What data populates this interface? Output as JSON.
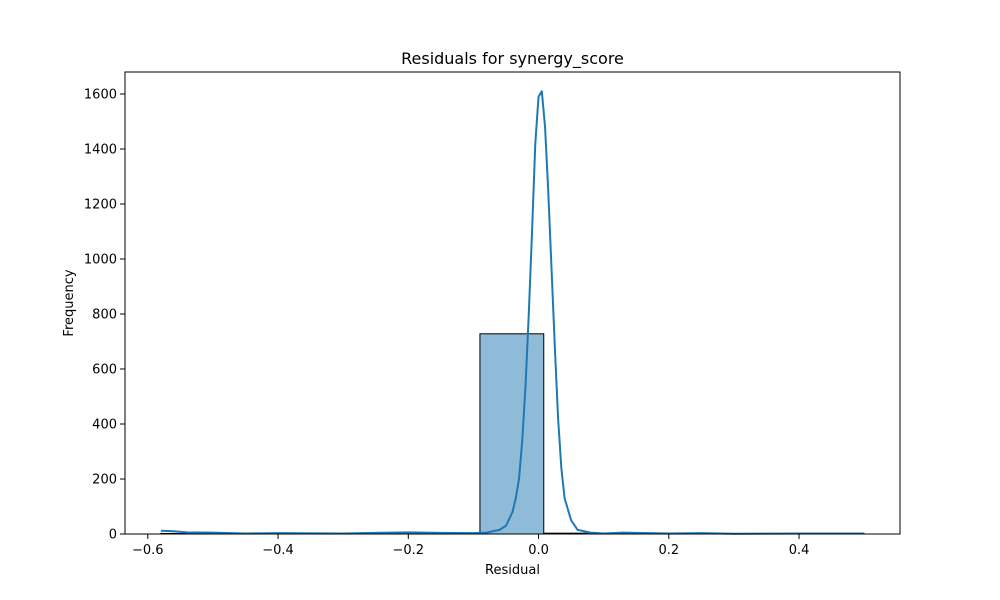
{
  "chart_data": {
    "type": "bar",
    "title": "Residuals for synergy_score",
    "xlabel": "Residual",
    "ylabel": "Frequency",
    "xlim": [
      -0.635,
      0.555
    ],
    "ylim": [
      0,
      1680
    ],
    "xticks": [
      -0.6,
      -0.4,
      -0.2,
      0.0,
      0.2,
      0.4
    ],
    "xtick_labels": [
      "−0.6",
      "−0.4",
      "−0.2",
      "0.0",
      "0.2",
      "0.4"
    ],
    "yticks": [
      0,
      200,
      400,
      600,
      800,
      1000,
      1200,
      1400,
      1600
    ],
    "ytick_labels": [
      "0",
      "200",
      "400",
      "600",
      "800",
      "1000",
      "1200",
      "1400",
      "1600"
    ],
    "grid": false,
    "bar_color": "#1f77b4",
    "bar_alpha": 0.5,
    "bar_edge_color": "#000000",
    "kde_color": "#1f77b4",
    "histogram": {
      "bin_edges": [
        -0.58,
        -0.482,
        -0.384,
        -0.286,
        -0.188,
        -0.09,
        0.008,
        0.106,
        0.204,
        0.302,
        0.4,
        0.5
      ],
      "counts": [
        2,
        0,
        0,
        0,
        0,
        728,
        3,
        0,
        0,
        0,
        1
      ]
    },
    "kde": {
      "x": [
        -0.58,
        -0.56,
        -0.54,
        -0.5,
        -0.45,
        -0.4,
        -0.3,
        -0.2,
        -0.15,
        -0.1,
        -0.08,
        -0.06,
        -0.05,
        -0.04,
        -0.035,
        -0.03,
        -0.025,
        -0.02,
        -0.015,
        -0.01,
        -0.005,
        0.0,
        0.005,
        0.01,
        0.015,
        0.02,
        0.025,
        0.03,
        0.035,
        0.04,
        0.05,
        0.06,
        0.08,
        0.1,
        0.13,
        0.2,
        0.25,
        0.3,
        0.4,
        0.5
      ],
      "y": [
        12,
        10,
        6,
        5,
        2,
        3,
        2,
        6,
        4,
        3,
        5,
        15,
        30,
        80,
        130,
        200,
        340,
        540,
        800,
        1100,
        1420,
        1590,
        1610,
        1480,
        1240,
        960,
        680,
        420,
        240,
        130,
        50,
        15,
        5,
        2,
        5,
        2,
        3,
        1,
        2,
        2
      ]
    }
  }
}
